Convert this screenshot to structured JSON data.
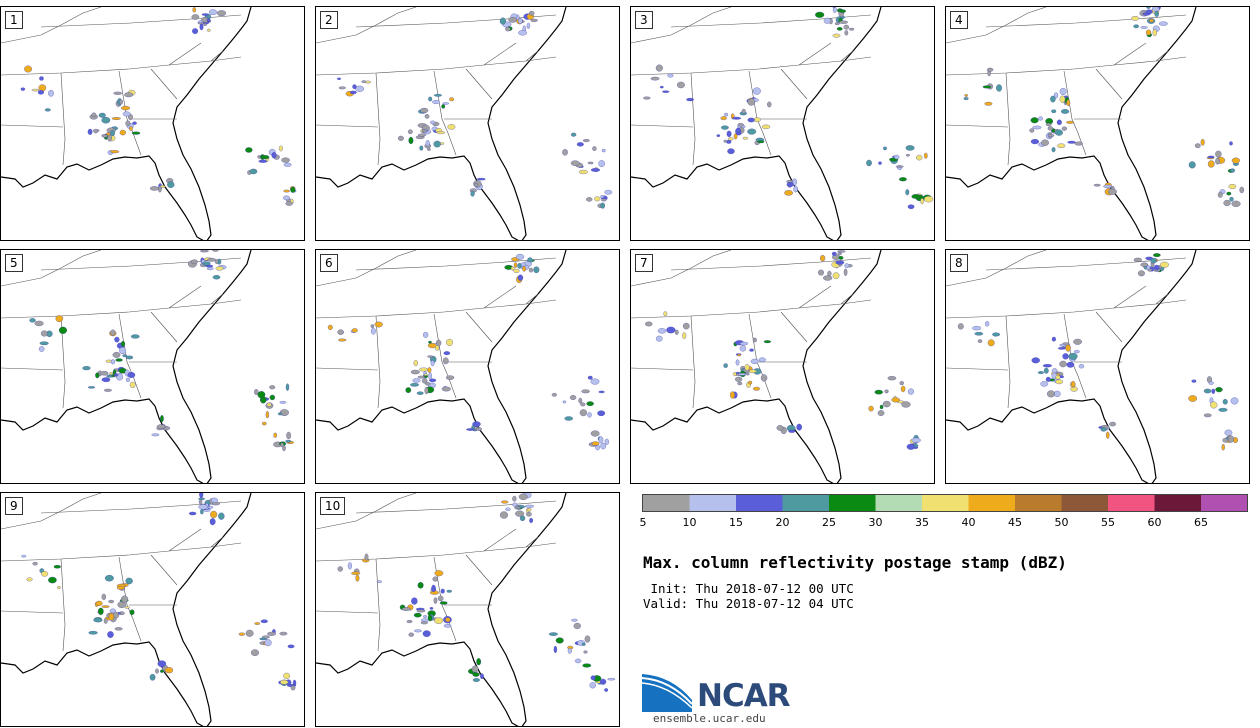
{
  "panels": [
    {
      "label": "1"
    },
    {
      "label": "2"
    },
    {
      "label": "3"
    },
    {
      "label": "4"
    },
    {
      "label": "5"
    },
    {
      "label": "6"
    },
    {
      "label": "7"
    },
    {
      "label": "8"
    },
    {
      "label": "9"
    },
    {
      "label": "10"
    }
  ],
  "colorbar": {
    "ticks": [
      "5",
      "10",
      "15",
      "20",
      "25",
      "30",
      "35",
      "40",
      "45",
      "50",
      "55",
      "60",
      "65"
    ],
    "colors": [
      "#a0a0a0",
      "#b6c0ec",
      "#5a5fd9",
      "#4e9aa0",
      "#0a8a12",
      "#b4dcb4",
      "#efe070",
      "#eeac1c",
      "#b87c2c",
      "#8c5838",
      "#f25482",
      "#6c1838",
      "#b050b0"
    ]
  },
  "title": "Max. column reflectivity postage stamp (dBZ)",
  "init_line": " Init: Thu 2018-07-12 00 UTC",
  "valid_line": "Valid: Thu 2018-07-12 04 UTC",
  "logo": {
    "name": "NCAR",
    "url": "ensemble.ucar.edu"
  }
}
